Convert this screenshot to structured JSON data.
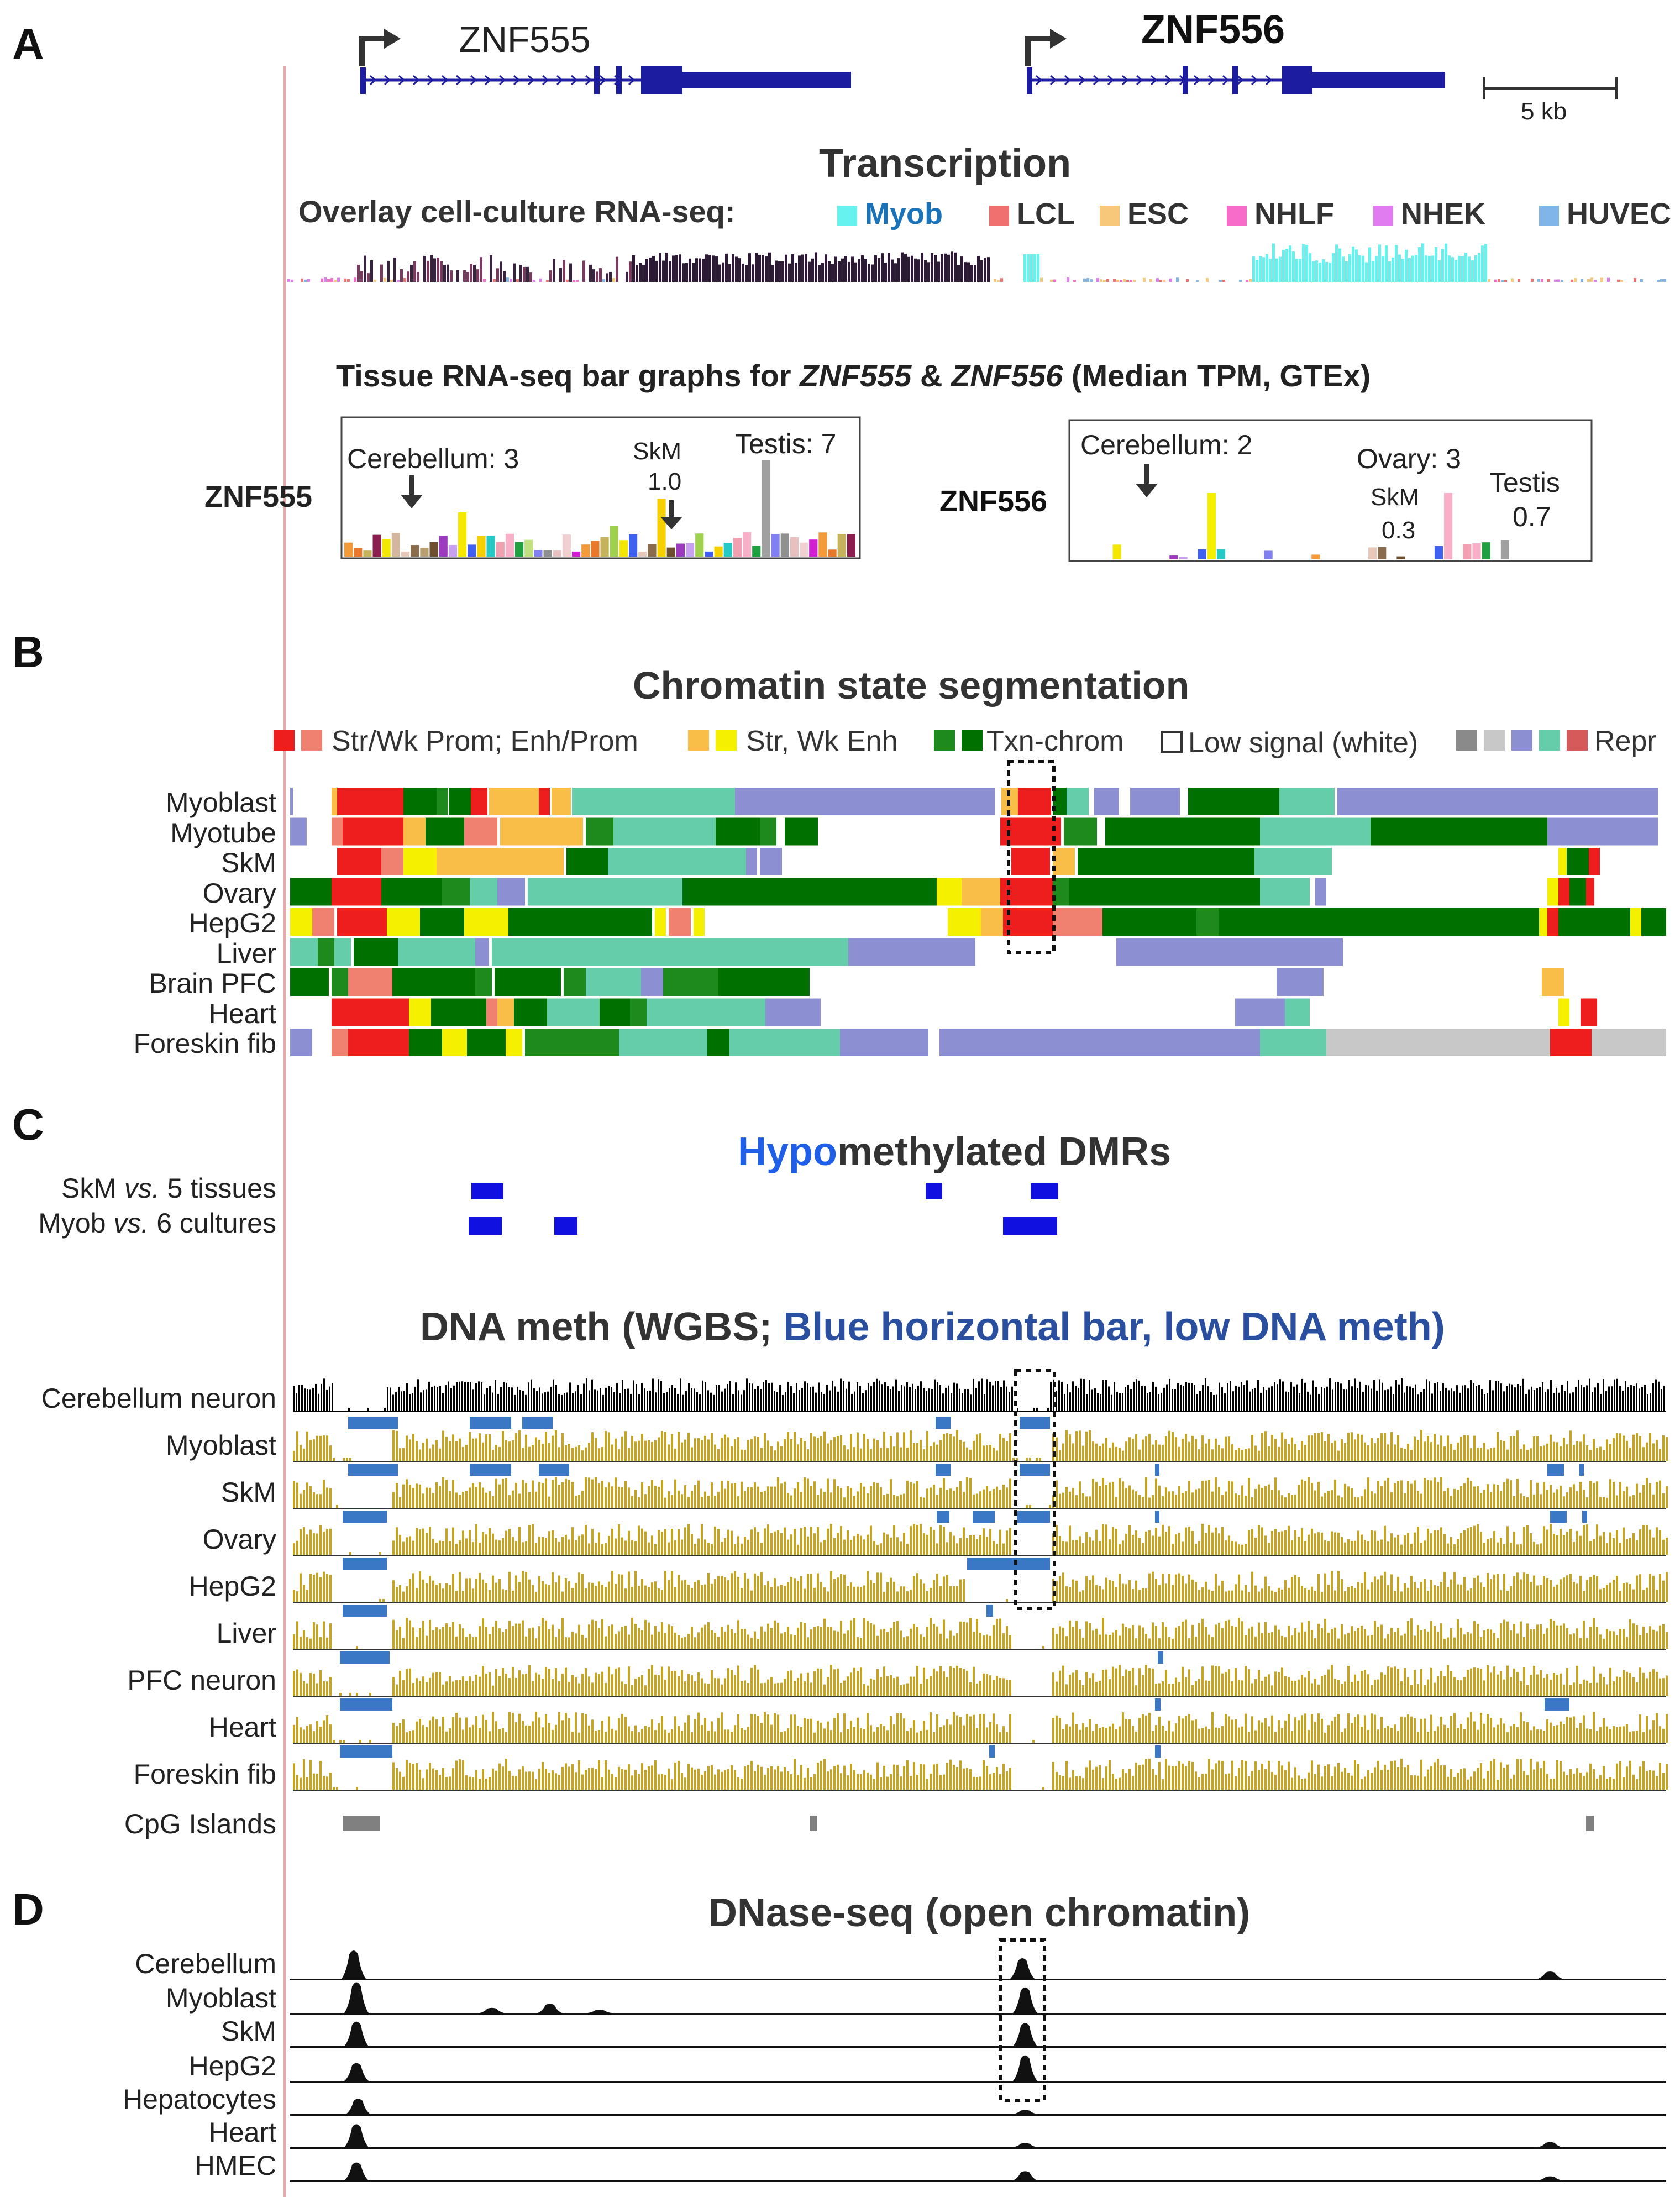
{
  "panels": {
    "A": "A",
    "B": "B",
    "C": "C",
    "D": "D"
  },
  "genes": {
    "znf555": "ZNF555",
    "znf556": "ZNF556",
    "scale_bar": "5 kb"
  },
  "transcription": {
    "title": "Transcription",
    "overlay_label": "Overlay cell-culture RNA-seq:",
    "legend": [
      {
        "label": "Myob",
        "color": "#66F2EE"
      },
      {
        "label": "LCL",
        "color": "#F07070"
      },
      {
        "label": "ESC",
        "color": "#F8C87A"
      },
      {
        "label": "NHLF",
        "color": "#F76BC9"
      },
      {
        "label": "NHEK",
        "color": "#E07CF0"
      },
      {
        "label": "HUVEC",
        "color": "#7FB5E8"
      }
    ]
  },
  "tissue_rnaseq": {
    "title_prefix": "Tissue RNA-seq bar graphs for ",
    "gene1": "ZNF555",
    "amp": " & ",
    "gene2": "ZNF556",
    "title_suffix": " (Median TPM, GTEx)",
    "znf555_label": "ZNF555",
    "znf556_label": "ZNF556",
    "znf555_annotations": {
      "cerebellum": "Cerebellum: 3",
      "skm": "SkM",
      "skm_value": "1.0",
      "testis": "Testis: 7"
    },
    "znf556_annotations": {
      "cerebellum": "Cerebellum: 2",
      "ovary": "Ovary: 3",
      "skm": "SkM",
      "skm_value": "0.3",
      "testis": "Testis",
      "testis_value": "0.7"
    }
  },
  "chromatin": {
    "title": "Chromatin state segmentation",
    "legend": {
      "prom": "Str/Wk Prom; Enh/Prom",
      "enh": "Str, Wk Enh",
      "txn": "Txn-chrom",
      "low": "Low signal (white)",
      "repr": "Repr"
    },
    "tracks": [
      "Myoblast",
      "Myotube",
      "SkM",
      "Ovary",
      "HepG2",
      "Liver",
      "Brain PFC",
      "Heart",
      "Foreskin fib"
    ],
    "colors": {
      "prom_strong": "#EE1E1E",
      "prom_weak": "#F08070",
      "enh_strong": "#F8BE48",
      "enh_weak": "#F5F000",
      "txn_strong": "#007000",
      "txn_weak": "#1E8A1E",
      "low": "#FFFFFF",
      "repr_gray": "#8A8A8A",
      "repr_light": "#C8C8C8",
      "repr_blue": "#8C8FD2",
      "repr_teal": "#66CDAA",
      "repr_red": "#D65A5A"
    }
  },
  "dmr": {
    "title_hypo": "Hypo",
    "title_rest": "methylated DMRs",
    "track1_pre": "SkM ",
    "track1_vs": "vs.",
    "track1_post": " 5 tissues",
    "track2_pre": "Myob ",
    "track2_vs": "vs.",
    "track2_post": " 6 cultures"
  },
  "dna_meth": {
    "title_part1": "DNA meth (WGBS;",
    "title_part2": "Blue horizontal bar, low DNA meth)",
    "tracks": [
      "Cerebellum neuron",
      "Myoblast",
      "SkM",
      "Ovary",
      "HepG2",
      "Liver",
      "PFC neuron",
      "Heart",
      "Foreskin fib"
    ],
    "cpg_label": "CpG Islands",
    "colors": {
      "meth": "#C4A425",
      "neuron": "#000000",
      "low_bar": "#3A78C6",
      "cpg": "#808080"
    }
  },
  "dnase": {
    "title": "DNase-seq (open chromatin)",
    "tracks": [
      "Cerebellum",
      "Myoblast",
      "SkM",
      "HepG2",
      "Hepatocytes",
      "Heart",
      "HMEC"
    ]
  }
}
